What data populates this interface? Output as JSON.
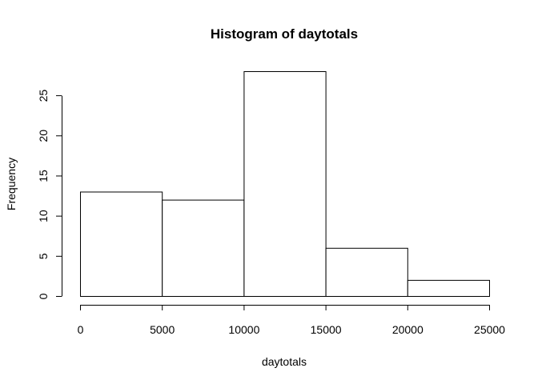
{
  "chart_data": {
    "type": "bar",
    "title": "Histogram of daytotals",
    "xlabel": "daytotals",
    "ylabel": "Frequency",
    "bins": [
      {
        "from": 0,
        "to": 5000,
        "count": 13
      },
      {
        "from": 5000,
        "to": 10000,
        "count": 12
      },
      {
        "from": 10000,
        "to": 15000,
        "count": 28
      },
      {
        "from": 15000,
        "to": 20000,
        "count": 6
      },
      {
        "from": 20000,
        "to": 25000,
        "count": 2
      }
    ],
    "xlim": [
      0,
      25000
    ],
    "ylim": [
      0,
      28
    ],
    "x_ticks": [
      0,
      5000,
      10000,
      15000,
      20000,
      25000
    ],
    "y_ticks": [
      0,
      5,
      10,
      15,
      20,
      25
    ],
    "grid": false,
    "bar_fill": "#ffffff",
    "bar_stroke": "#000000"
  }
}
